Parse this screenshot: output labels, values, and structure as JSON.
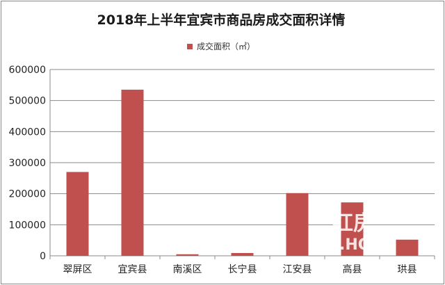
{
  "chart_data": {
    "type": "bar",
    "title": "2018年上半年宜宾市商品房成交面积详情",
    "legend": {
      "label": "成交面积（㎡）",
      "position": "top",
      "color": "#c0504d"
    },
    "categories": [
      "翠屏区",
      "宜宾县",
      "南溪区",
      "长宁县",
      "江安县",
      "高县",
      "珙县"
    ],
    "series": [
      {
        "name": "成交面积（㎡）",
        "color": "#c0504d",
        "values": [
          270000,
          535000,
          5000,
          9000,
          202000,
          172000,
          52000
        ]
      }
    ],
    "ylim": [
      0,
      600000
    ],
    "yticks": [
      0,
      100000,
      200000,
      300000,
      400000,
      500000,
      600000
    ],
    "grid": true
  },
  "watermark": {
    "line1": "红房",
    "line2": ".HO"
  }
}
